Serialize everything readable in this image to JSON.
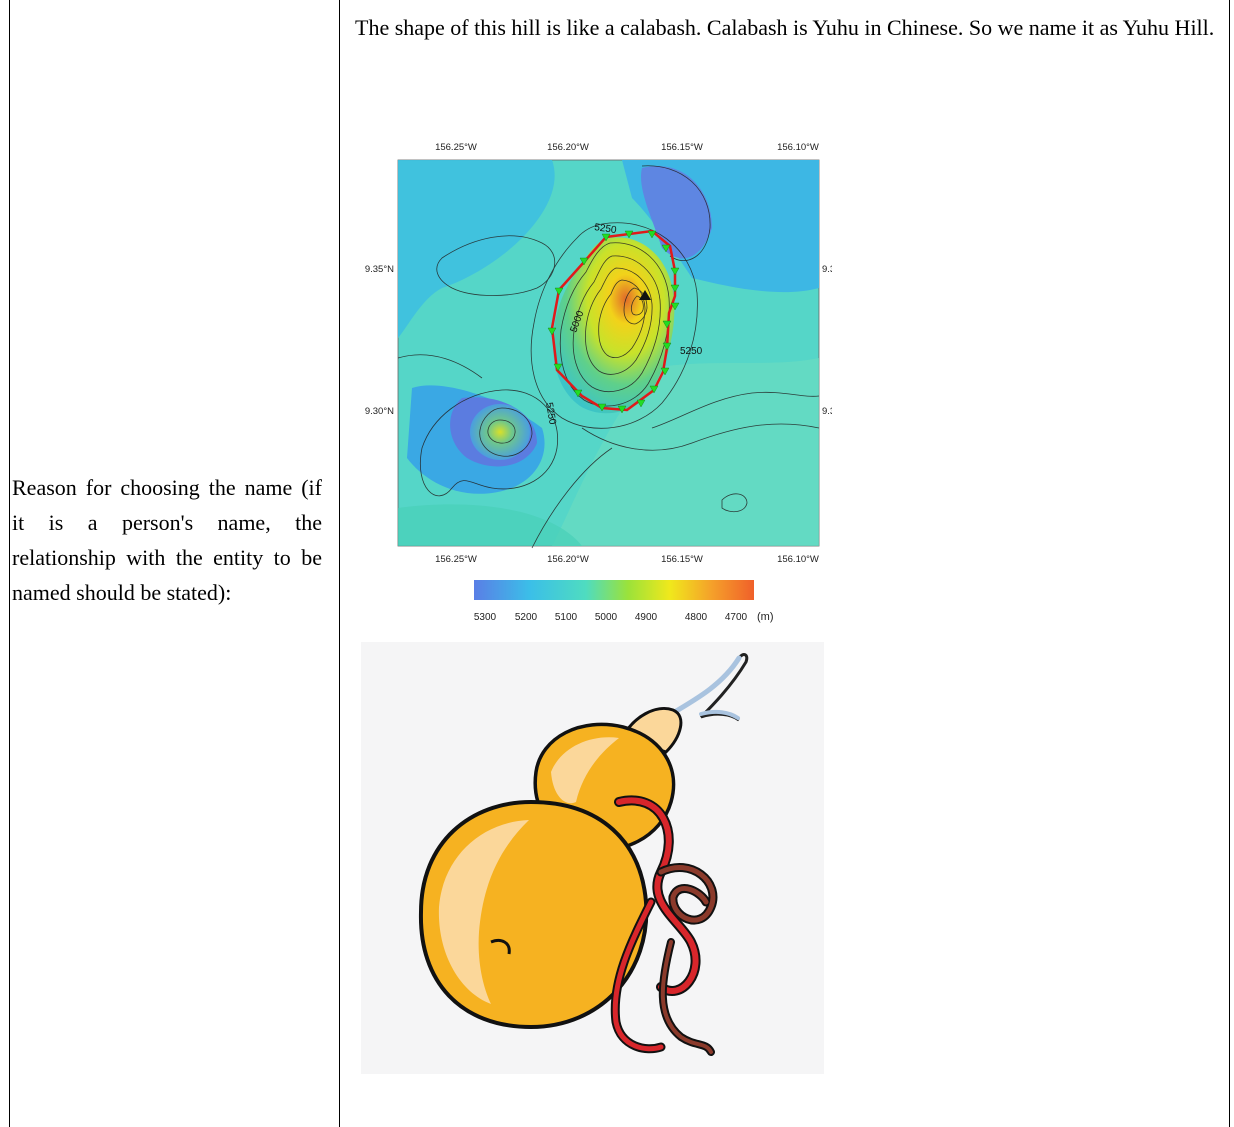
{
  "table": {
    "label": "Reason for choosing the name (if it is a person's name, the relationship with the entity to be named should be stated):",
    "reason": "The shape of this hill is like a calabash. Calabash is Yuhu in Chinese. So we name it as Yuhu Hill."
  },
  "map": {
    "lon_ticks": [
      "156.25°W",
      "156.20°W",
      "156.15°W",
      "156.10°W"
    ],
    "lat_ticks": [
      "9.35°N",
      "9.30°N"
    ],
    "contour_labels": [
      "5250",
      "5000",
      "5250",
      "5250"
    ],
    "colorbar_ticks": [
      "5300",
      "5200",
      "5100",
      "5000",
      "4900",
      "4800",
      "4700"
    ],
    "colorbar_unit": "(m)"
  },
  "colors": {
    "boundary": "#e01a1a",
    "marker": "#22dd22",
    "gourd_body": "#f6b221",
    "gourd_highlight": "#fbd79a",
    "ribbon": "#d8262b",
    "stem": "#a9c3df"
  }
}
